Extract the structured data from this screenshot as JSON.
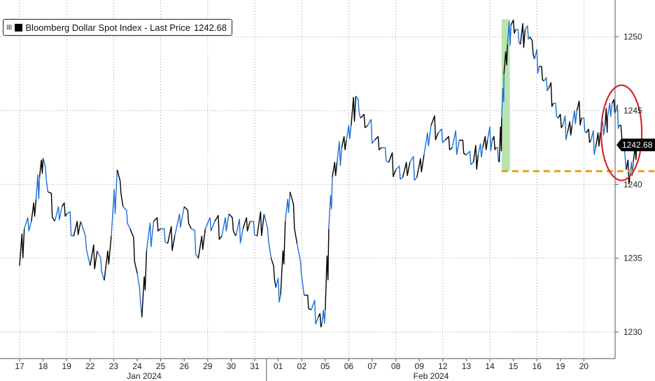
{
  "legend": {
    "series_label": "Bloomberg Dollar Spot Index - Last Price",
    "last_price_text": "1242.68",
    "toggle_icon": "expand-toggle-icon"
  },
  "colors": {
    "price_dark": "#000000",
    "price_blue": "#1f6fd8",
    "highlight": "#b9e3b0",
    "support": "#e3a21a",
    "circle": "#d9262b",
    "last_tag": "#000000"
  },
  "chart_data": {
    "type": "line",
    "title": "",
    "series": [
      {
        "name": "Bloomberg Dollar Spot Index - Last Price"
      }
    ],
    "last_price": 1242.68,
    "ylim": [
      1228.2,
      1252.5
    ],
    "yticks": [
      1230,
      1235,
      1240,
      1245,
      1250
    ],
    "grid": true,
    "x_categories": [
      "17",
      "18",
      "19",
      "22",
      "23",
      "24",
      "25",
      "26",
      "29",
      "30",
      "31",
      "01",
      "02",
      "05",
      "06",
      "07",
      "08",
      "09",
      "12",
      "13",
      "14",
      "15",
      "16",
      "19",
      "20"
    ],
    "month_labels": [
      "Jan 2024",
      "Feb 2024"
    ],
    "points": [
      [
        0,
        1234.5
      ],
      [
        0.2,
        1237.0
      ],
      [
        0.5,
        1237.5
      ],
      [
        0.7,
        1239.0
      ],
      [
        0.85,
        1240.5
      ],
      [
        1.0,
        1241.8
      ],
      [
        1.2,
        1239.5
      ],
      [
        1.5,
        1237.5
      ],
      [
        1.8,
        1238.5
      ],
      [
        2.0,
        1238.0
      ],
      [
        2.3,
        1236.5
      ],
      [
        2.6,
        1237.5
      ],
      [
        3.0,
        1234.5
      ],
      [
        3.3,
        1235.5
      ],
      [
        3.6,
        1233.5
      ],
      [
        3.9,
        1236.5
      ],
      [
        4.15,
        1241.0
      ],
      [
        4.4,
        1238.5
      ],
      [
        4.7,
        1237.0
      ],
      [
        5.0,
        1234.0
      ],
      [
        5.2,
        1231.0
      ],
      [
        5.4,
        1235.5
      ],
      [
        5.7,
        1237.5
      ],
      [
        6.0,
        1237.0
      ],
      [
        6.3,
        1236.0
      ],
      [
        6.6,
        1236.5
      ],
      [
        7.0,
        1238.5
      ],
      [
        7.3,
        1237.0
      ],
      [
        7.6,
        1235.0
      ],
      [
        7.9,
        1237.0
      ],
      [
        8.3,
        1237.5
      ],
      [
        8.6,
        1236.5
      ],
      [
        8.9,
        1238.0
      ],
      [
        9.2,
        1236.5
      ],
      [
        9.5,
        1237.0
      ],
      [
        9.8,
        1237.5
      ],
      [
        10.1,
        1236.5
      ],
      [
        10.4,
        1238.0
      ],
      [
        10.7,
        1235.0
      ],
      [
        10.9,
        1233.0
      ],
      [
        11.1,
        1232.5
      ],
      [
        11.3,
        1237.5
      ],
      [
        11.5,
        1239.5
      ],
      [
        11.8,
        1236.0
      ],
      [
        12.1,
        1232.5
      ],
      [
        12.4,
        1231.5
      ],
      [
        12.7,
        1231.0
      ],
      [
        12.85,
        1230.5
      ],
      [
        13.0,
        1231.5
      ],
      [
        13.15,
        1237.0
      ],
      [
        13.3,
        1240.5
      ],
      [
        13.5,
        1241.5
      ],
      [
        13.7,
        1242.5
      ],
      [
        13.9,
        1243.0
      ],
      [
        14.1,
        1244.0
      ],
      [
        14.3,
        1246.0
      ],
      [
        14.5,
        1244.5
      ],
      [
        14.8,
        1244.0
      ],
      [
        15.1,
        1243.0
      ],
      [
        15.4,
        1242.5
      ],
      [
        15.7,
        1241.5
      ],
      [
        16.0,
        1241.0
      ],
      [
        16.3,
        1240.5
      ],
      [
        16.6,
        1241.5
      ],
      [
        16.9,
        1240.5
      ],
      [
        17.2,
        1242.0
      ],
      [
        17.5,
        1244.0
      ],
      [
        17.8,
        1243.5
      ],
      [
        18.1,
        1243.0
      ],
      [
        18.4,
        1242.5
      ],
      [
        18.7,
        1243.0
      ],
      [
        19.0,
        1242.0
      ],
      [
        19.3,
        1241.5
      ],
      [
        19.5,
        1242.0
      ],
      [
        19.7,
        1242.5
      ],
      [
        19.9,
        1243.0
      ],
      [
        20.1,
        1243.0
      ],
      [
        20.25,
        1242.5
      ],
      [
        20.4,
        1241.5
      ],
      [
        20.5,
        1244.5
      ],
      [
        20.6,
        1247.5
      ],
      [
        20.75,
        1249.5
      ],
      [
        20.9,
        1250.8
      ],
      [
        21.1,
        1250.5
      ],
      [
        21.3,
        1249.5
      ],
      [
        21.5,
        1250.5
      ],
      [
        21.7,
        1250.0
      ],
      [
        21.9,
        1248.5
      ],
      [
        22.1,
        1248.0
      ],
      [
        22.3,
        1247.0
      ],
      [
        22.5,
        1246.5
      ],
      [
        22.7,
        1245.5
      ],
      [
        22.9,
        1244.5
      ],
      [
        23.1,
        1244.0
      ],
      [
        23.3,
        1243.5
      ],
      [
        23.5,
        1244.0
      ],
      [
        23.7,
        1245.0
      ],
      [
        23.9,
        1244.5
      ],
      [
        24.1,
        1243.5
      ],
      [
        24.3,
        1243.0
      ],
      [
        24.5,
        1242.5
      ],
      [
        24.7,
        1243.5
      ],
      [
        24.9,
        1244.0
      ],
      [
        25.0,
        1244.5
      ],
      [
        25.2,
        1245.5
      ],
      [
        25.35,
        1245.0
      ],
      [
        25.5,
        1244.0
      ],
      [
        25.65,
        1243.0
      ],
      [
        25.8,
        1241.0
      ],
      [
        25.95,
        1240.5
      ],
      [
        26.1,
        1241.5
      ],
      [
        26.25,
        1242.68
      ]
    ],
    "highlight_range": [
      20.5,
      20.85
    ],
    "support_level": 1240.9,
    "support_range": [
      20.5,
      27.0
    ],
    "annotation_circle": {
      "x": 25.6,
      "y": 1243.5
    }
  }
}
